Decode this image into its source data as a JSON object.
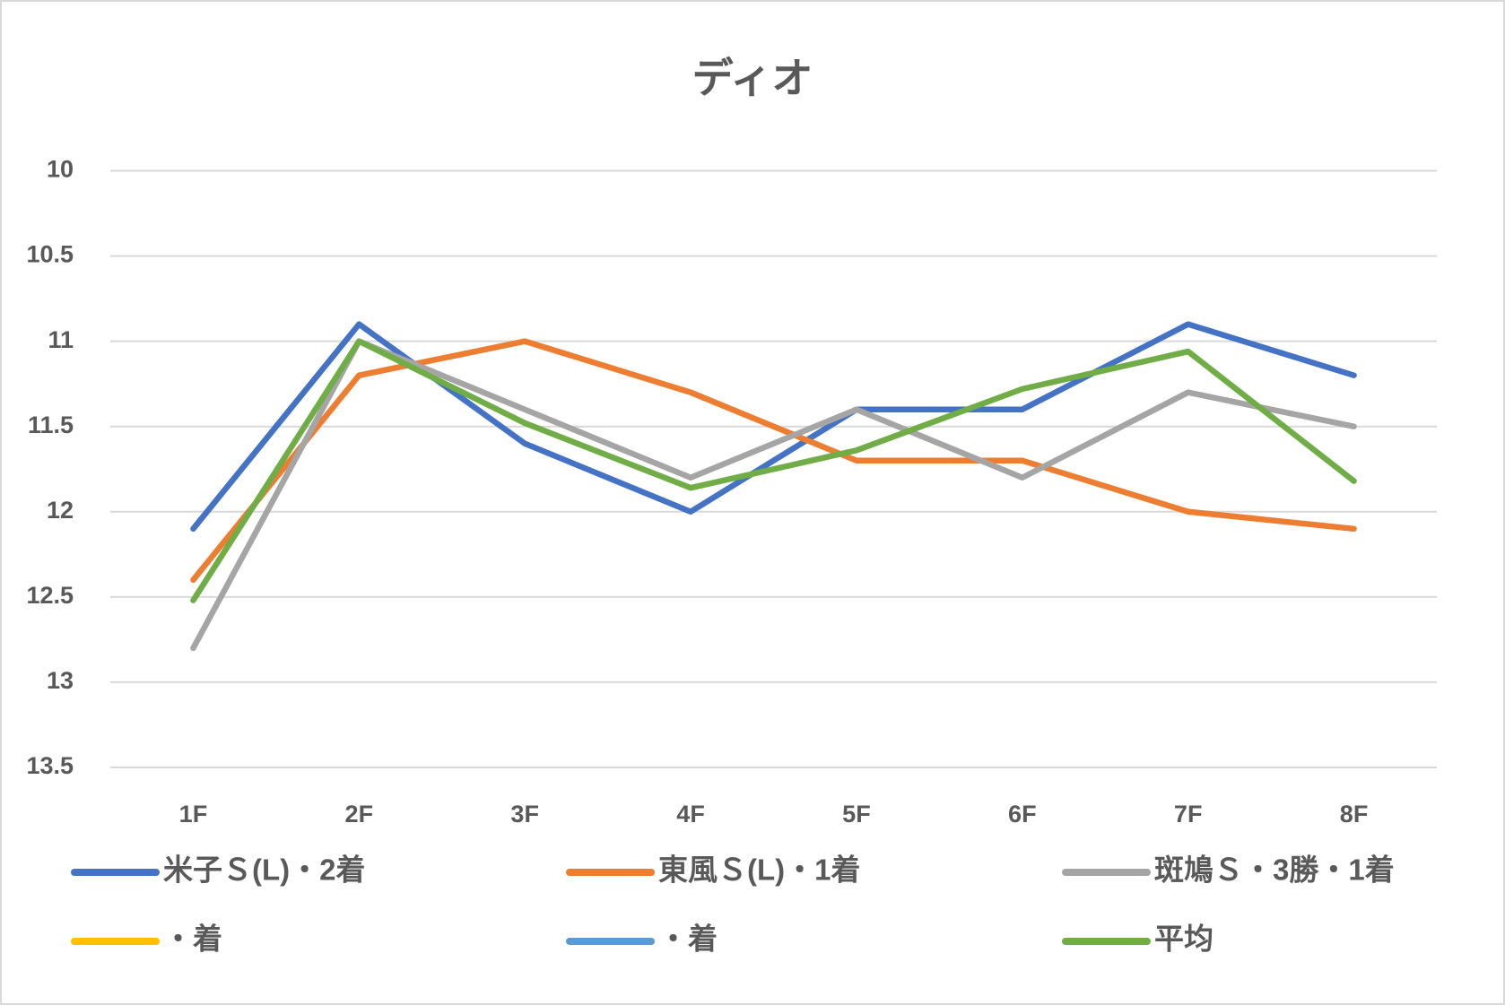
{
  "chart_data": {
    "type": "line",
    "title": "ディオ",
    "categories": [
      "1F",
      "2F",
      "3F",
      "4F",
      "5F",
      "6F",
      "7F",
      "8F"
    ],
    "series": [
      {
        "name": "米子Ｓ(L)・2着",
        "color": "#4472c4",
        "values": [
          12.1,
          10.9,
          11.6,
          12.0,
          11.4,
          11.4,
          10.9,
          11.2
        ]
      },
      {
        "name": "東風Ｓ(L)・1着",
        "color": "#ed7d31",
        "values": [
          12.4,
          11.2,
          11.0,
          11.3,
          11.7,
          11.7,
          12.0,
          12.1
        ]
      },
      {
        "name": "斑鳩Ｓ・3勝・1着",
        "color": "#a5a5a5",
        "values": [
          12.8,
          11.0,
          11.4,
          11.8,
          11.4,
          11.8,
          11.3,
          11.5
        ]
      },
      {
        "name": "・着",
        "color": "#ffc000",
        "values": [
          null,
          null,
          null,
          null,
          null,
          null,
          null,
          null
        ]
      },
      {
        "name": "・着",
        "color": "#5b9bd5",
        "values": [
          null,
          null,
          null,
          null,
          null,
          null,
          null,
          null
        ]
      },
      {
        "name": "平均",
        "color": "#70ad47",
        "values": [
          12.52,
          11.0,
          11.48,
          11.86,
          11.64,
          11.28,
          11.06,
          11.82
        ]
      }
    ],
    "ylim": [
      10,
      13.5
    ],
    "yreverse": true,
    "yticks": [
      10,
      10.5,
      11,
      11.5,
      12,
      12.5,
      13,
      13.5
    ],
    "grid": true,
    "legend": "bottom"
  }
}
